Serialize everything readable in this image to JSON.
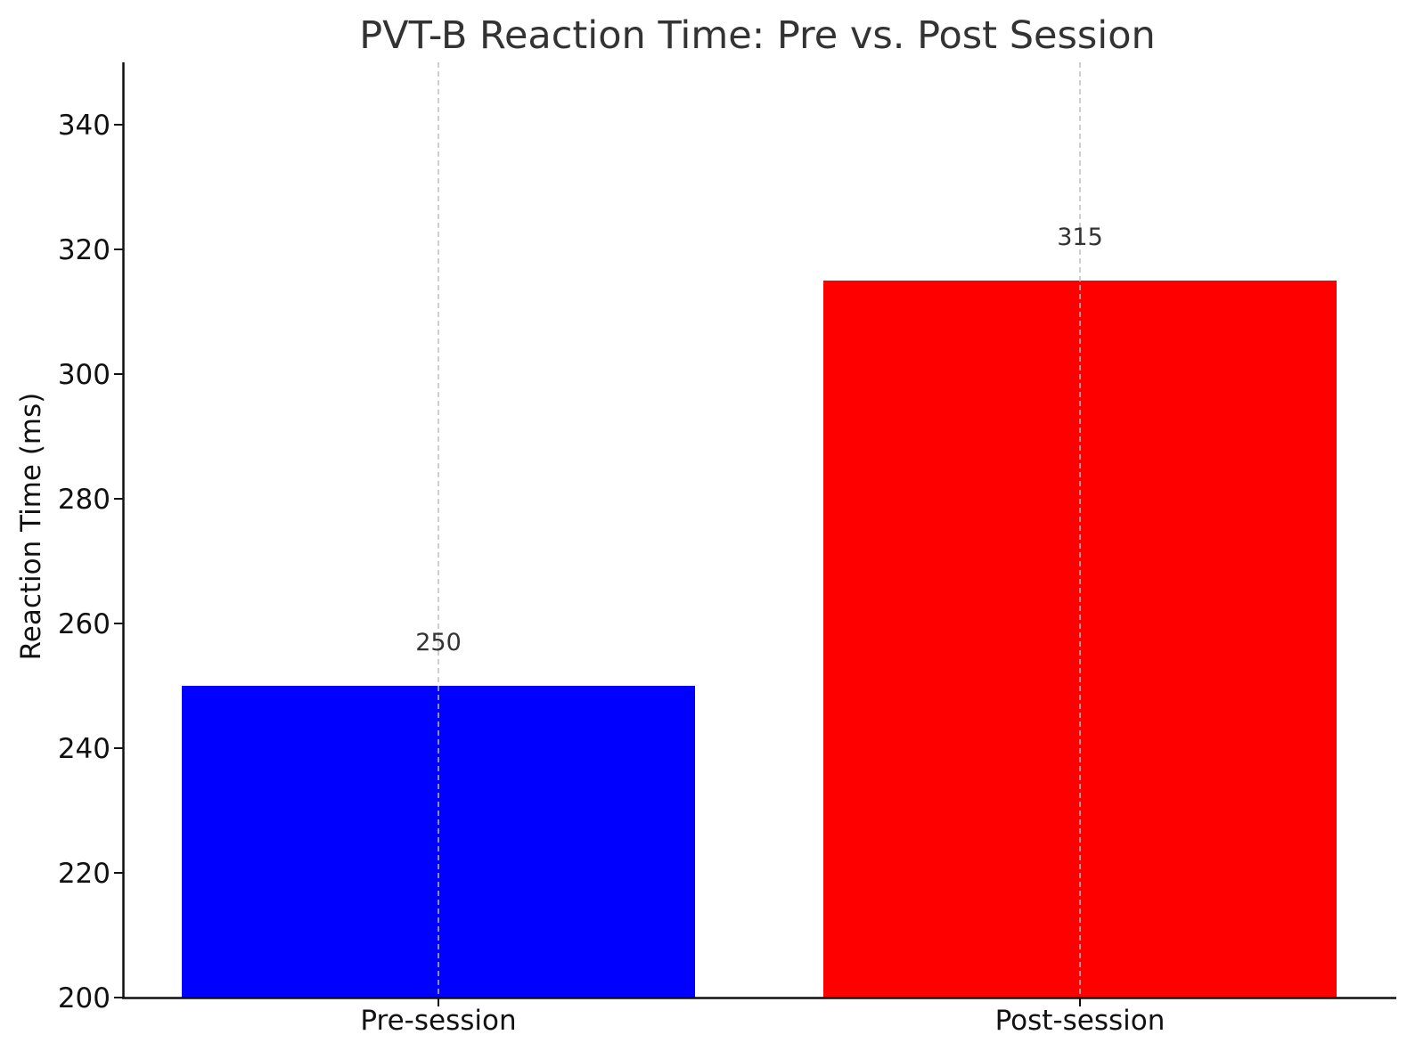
{
  "chart_data": {
    "type": "bar",
    "title": "PVT-B Reaction Time: Pre vs. Post Session",
    "xlabel": "",
    "ylabel": "Reaction Time (ms)",
    "categories": [
      "Pre-session",
      "Post-session"
    ],
    "values": [
      250,
      315
    ],
    "data_labels": [
      "250",
      "315"
    ],
    "bar_colors": [
      "#0000ff",
      "#ff0000"
    ],
    "ylim": [
      200,
      350
    ],
    "yticks": [
      200,
      220,
      240,
      260,
      280,
      300,
      320,
      340
    ],
    "ytick_labels": [
      "200",
      "220",
      "240",
      "260",
      "280",
      "300",
      "320",
      "340"
    ],
    "grid": "vertical dashed, on x ticks",
    "legend": "none"
  }
}
